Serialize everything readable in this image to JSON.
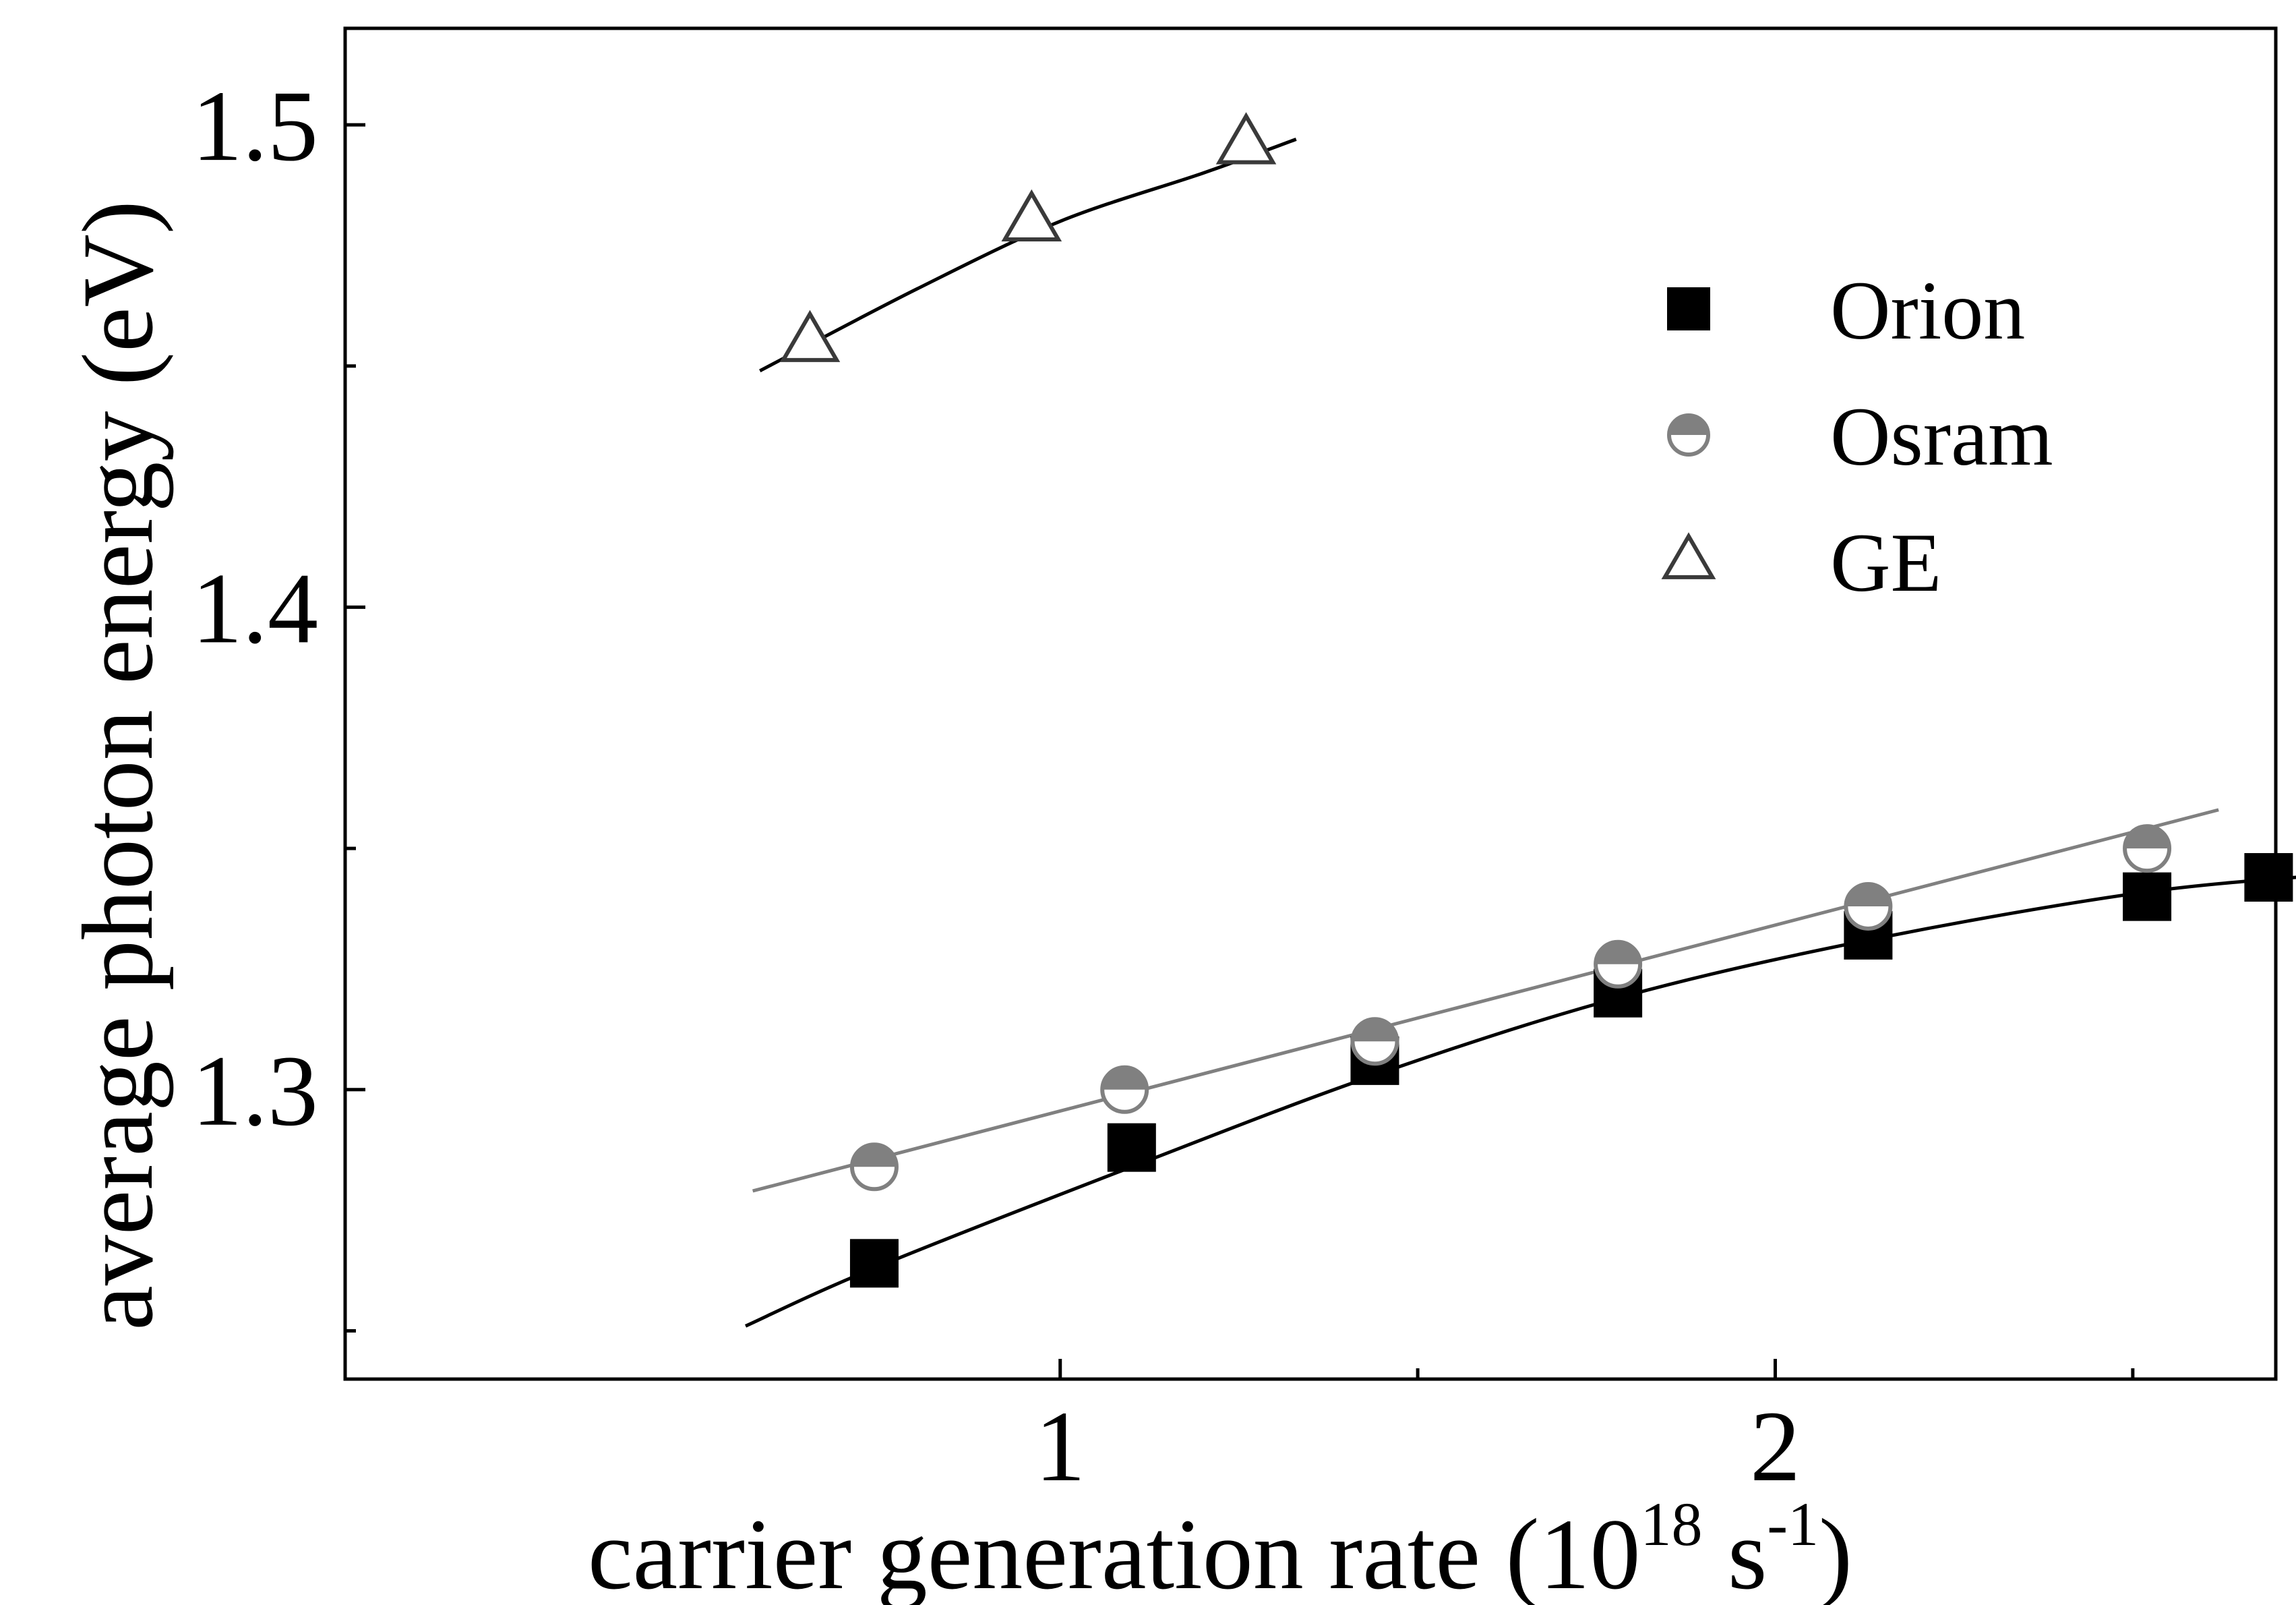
{
  "chart_data": {
    "type": "scatter",
    "title": "",
    "xlabel": "carrier generation rate (10",
    "xlabel_exponent": "18",
    "xlabel_unit": " s",
    "xlabel_unit_exponent": "-1",
    "xlabel_close": ")",
    "ylabel": "average photon energy (eV)",
    "xlim": [
      0.0,
      2.7
    ],
    "ylim": [
      1.24,
      1.52
    ],
    "x_ticks": [
      {
        "value": 1,
        "label": "1"
      },
      {
        "value": 2,
        "label": "2"
      }
    ],
    "x_minor_ticks": [
      1.5,
      2.5
    ],
    "y_ticks": [
      {
        "value": 1.3,
        "label": "1.3"
      },
      {
        "value": 1.4,
        "label": "1.4"
      },
      {
        "value": 1.5,
        "label": "1.5"
      }
    ],
    "y_minor_ticks": [
      1.25,
      1.35,
      1.45
    ],
    "grid": false,
    "legend_position": "top-right",
    "series": [
      {
        "name": "Orion",
        "marker": "square-filled",
        "color": "#000000",
        "x": [
          0.74,
          1.1,
          1.44,
          1.78,
          2.13,
          2.52,
          2.69
        ],
        "y": [
          1.264,
          1.288,
          1.306,
          1.32,
          1.332,
          1.34,
          1.344
        ],
        "fit": {
          "x": [
            0.56,
            0.74,
            1.1,
            1.44,
            1.78,
            2.13,
            2.52,
            2.82
          ],
          "y": [
            1.251,
            1.263,
            1.284,
            1.303,
            1.319,
            1.331,
            1.341,
            1.345
          ]
        }
      },
      {
        "name": "Osram",
        "marker": "half-filled-circle",
        "color": "#808080",
        "x": [
          0.74,
          1.09,
          1.44,
          1.78,
          2.13,
          2.52
        ],
        "y": [
          1.284,
          1.3,
          1.31,
          1.326,
          1.338,
          1.35
        ],
        "fit": {
          "x": [
            0.57,
            2.62
          ],
          "y": [
            1.279,
            1.358
          ]
        }
      },
      {
        "name": "GE",
        "marker": "triangle-open",
        "color": "#3a3a3a",
        "x": [
          0.65,
          0.96,
          1.26
        ],
        "y": [
          1.455,
          1.48,
          1.496
        ],
        "fit": {
          "x": [
            0.58,
            0.8,
            1.0,
            1.2,
            1.33
          ],
          "y": [
            1.449,
            1.466,
            1.48,
            1.49,
            1.497
          ]
        }
      }
    ]
  }
}
